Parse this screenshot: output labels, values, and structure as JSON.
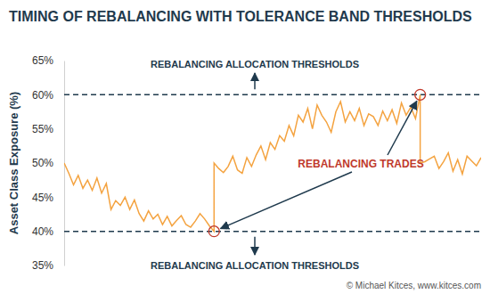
{
  "chart_data": {
    "type": "line",
    "title": "TIMING OF REBALANCING WITH TOLERANCE BAND THRESHOLDS",
    "y_label": "Asset Class Exposure (%)",
    "x": [
      0,
      1,
      2,
      3,
      4,
      5,
      6,
      7,
      8,
      9,
      10,
      11,
      12,
      13,
      14,
      15,
      16,
      17,
      18,
      19,
      20,
      21,
      22,
      23,
      24,
      25,
      26,
      27,
      28,
      29,
      30,
      31,
      32,
      32,
      33,
      34,
      35,
      36,
      37,
      38,
      39,
      40,
      41,
      42,
      43,
      44,
      45,
      46,
      47,
      48,
      49,
      50,
      51,
      52,
      53,
      54,
      55,
      56,
      57,
      58,
      59,
      60,
      61,
      62,
      63,
      64,
      65,
      66,
      67,
      68,
      69,
      70,
      71,
      72,
      73,
      74,
      75,
      76,
      76,
      77,
      78,
      79,
      80,
      81,
      82,
      83,
      84,
      85,
      86,
      87,
      88,
      89
    ],
    "values": [
      50,
      48.5,
      46.8,
      48.2,
      46.3,
      47.5,
      46,
      47.8,
      45.6,
      47,
      43.2,
      44.5,
      43.8,
      45,
      43.2,
      44.6,
      42.6,
      41.5,
      43,
      41.8,
      42.5,
      41,
      42.2,
      40.8,
      41.6,
      42.3,
      41,
      40.6,
      41.5,
      42.6,
      41.8,
      40.8,
      40,
      50,
      49.2,
      48.6,
      49.5,
      51,
      49,
      48.5,
      50.8,
      49.5,
      51.2,
      52.5,
      50.5,
      53,
      52,
      54,
      53.2,
      55.5,
      54,
      57,
      56,
      58,
      55,
      58.5,
      57,
      56,
      54.5,
      57.5,
      59,
      56,
      57.5,
      56.2,
      58,
      55.5,
      57.2,
      56.8,
      55.5,
      57.6,
      56.2,
      57.8,
      55.8,
      58.8,
      57,
      58.2,
      56.5,
      60,
      50,
      50.2,
      50.6,
      51,
      49.2,
      50.2,
      51.5,
      48.8,
      50.5,
      48.4,
      51,
      50.3,
      49.6,
      50.8
    ],
    "color": "#f4a340",
    "xlim": [
      0,
      89
    ],
    "ylim": [
      35,
      65
    ],
    "yticks": [
      {
        "value": 35,
        "label": "35%"
      },
      {
        "value": 40,
        "label": "40%"
      },
      {
        "value": 45,
        "label": "45%"
      },
      {
        "value": 50,
        "label": "50%"
      },
      {
        "value": 55,
        "label": "55%"
      },
      {
        "value": 60,
        "label": "60%"
      },
      {
        "value": 65,
        "label": "65%"
      }
    ],
    "tick_labels": "y",
    "grid": false,
    "thresholds": [
      {
        "value": 60,
        "label": "REBALANCING ALLOCATION THRESHOLDS"
      },
      {
        "value": 40,
        "label": "REBALANCING ALLOCATION THRESHOLDS"
      }
    ],
    "annotation": "REBALANCING TRADES",
    "source": "© Michael Kitces, www.kitces.com"
  }
}
